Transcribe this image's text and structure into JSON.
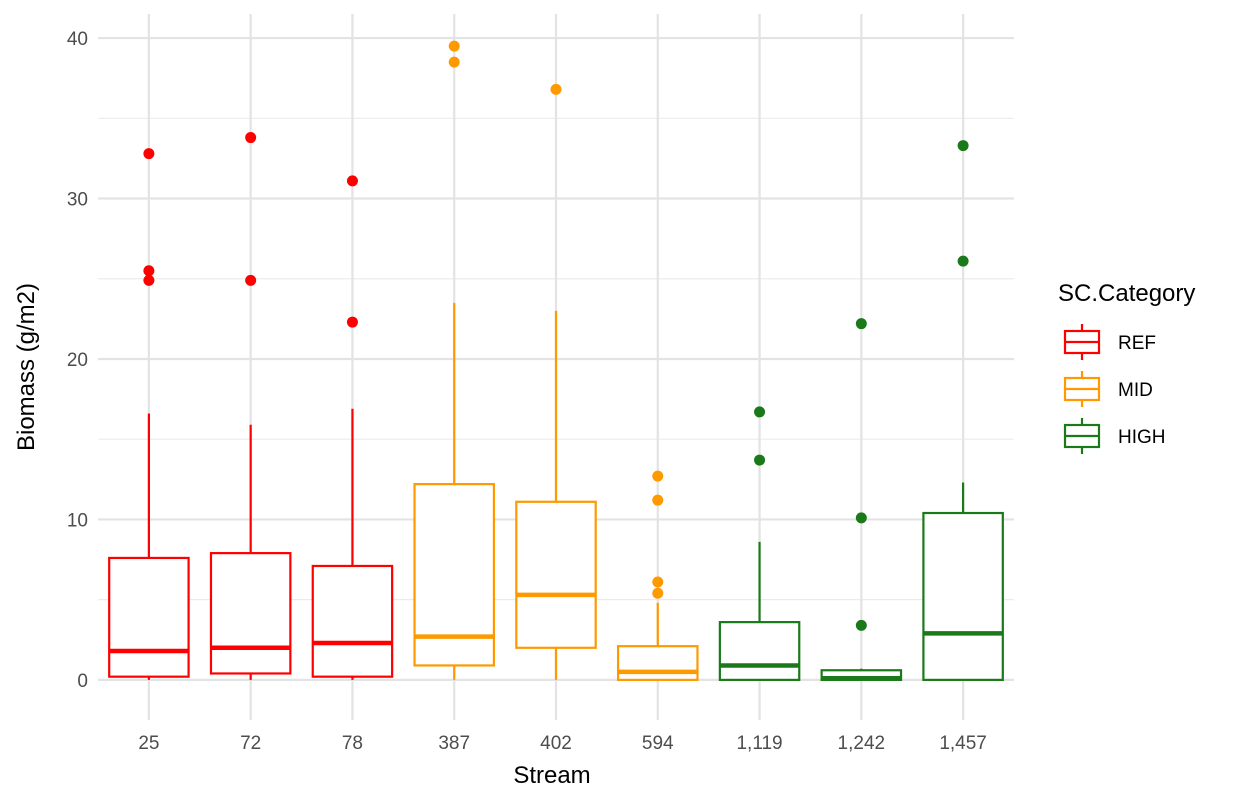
{
  "chart_data": {
    "type": "boxplot",
    "title": "",
    "xlabel": "Stream",
    "ylabel": "Biomass (g/m2)",
    "ylim": [
      -2.5,
      41.5
    ],
    "yticks": [
      0,
      10,
      20,
      30,
      40
    ],
    "grid": true,
    "legend": {
      "title": "SC.Category",
      "position": "right"
    },
    "categories": [
      "25",
      "72",
      "78",
      "387",
      "402",
      "594",
      "1,119",
      "1,242",
      "1,457"
    ],
    "groups": [
      {
        "name": "REF",
        "color": "#FF0000"
      },
      {
        "name": "MID",
        "color": "#FF9900"
      },
      {
        "name": "HIGH",
        "color": "#1A7A1A"
      }
    ],
    "boxes": [
      {
        "x": "25",
        "group": "REF",
        "min": 0.0,
        "q1": 0.2,
        "median": 1.8,
        "q3": 7.6,
        "max": 16.6,
        "outliers": [
          32.8,
          25.5,
          24.9
        ]
      },
      {
        "x": "72",
        "group": "REF",
        "min": 0.0,
        "q1": 0.4,
        "median": 2.0,
        "q3": 7.9,
        "max": 15.9,
        "outliers": [
          33.8,
          24.9
        ]
      },
      {
        "x": "78",
        "group": "REF",
        "min": 0.0,
        "q1": 0.2,
        "median": 2.3,
        "q3": 7.1,
        "max": 16.9,
        "outliers": [
          31.1,
          22.3
        ]
      },
      {
        "x": "387",
        "group": "MID",
        "min": 0.0,
        "q1": 0.9,
        "median": 2.7,
        "q3": 12.2,
        "max": 23.5,
        "outliers": [
          39.5,
          38.5
        ]
      },
      {
        "x": "402",
        "group": "MID",
        "min": 0.0,
        "q1": 2.0,
        "median": 5.3,
        "q3": 11.1,
        "max": 23.0,
        "outliers": [
          36.8
        ]
      },
      {
        "x": "594",
        "group": "MID",
        "min": 0.0,
        "q1": 0.0,
        "median": 0.5,
        "q3": 2.1,
        "max": 4.8,
        "outliers": [
          12.7,
          11.2,
          6.1,
          5.4
        ]
      },
      {
        "x": "1,119",
        "group": "HIGH",
        "min": 0.0,
        "q1": 0.0,
        "median": 0.9,
        "q3": 3.6,
        "max": 8.6,
        "outliers": [
          16.7,
          13.7
        ]
      },
      {
        "x": "1,242",
        "group": "HIGH",
        "min": 0.0,
        "q1": 0.0,
        "median": 0.1,
        "q3": 0.6,
        "max": 0.7,
        "outliers": [
          22.2,
          10.1,
          3.4
        ]
      },
      {
        "x": "1,457",
        "group": "HIGH",
        "min": 0.0,
        "q1": 0.0,
        "median": 2.9,
        "q3": 10.4,
        "max": 12.3,
        "outliers": [
          33.3,
          26.1
        ]
      }
    ]
  }
}
